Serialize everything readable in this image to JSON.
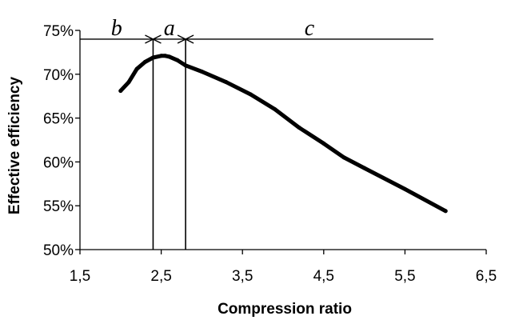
{
  "chart_data": {
    "type": "line",
    "xlabel": "Compression ratio",
    "ylabel": "Effective efficiency",
    "xlim": [
      1.5,
      6.5
    ],
    "ylim": [
      50,
      75
    ],
    "xticks": [
      1.5,
      2.5,
      3.5,
      4.5,
      5.5,
      6.5
    ],
    "xtick_labels": [
      "1,5",
      "2,5",
      "3,5",
      "4,5",
      "5,5",
      "6,5"
    ],
    "yticks": [
      50,
      55,
      60,
      65,
      70,
      75
    ],
    "ytick_labels": [
      "50%",
      "55%",
      "60%",
      "65%",
      "70%",
      "75%"
    ],
    "grid": false,
    "series": [
      {
        "x": [
          2.0,
          2.1,
          2.2,
          2.3,
          2.4,
          2.5,
          2.55,
          2.6,
          2.7,
          2.8,
          3.0,
          3.3,
          3.6,
          3.9,
          4.2,
          4.5,
          4.75,
          5.0,
          5.5,
          6.0
        ],
        "y": [
          68.1,
          69.1,
          70.6,
          71.4,
          71.9,
          72.1,
          72.1,
          72.0,
          71.6,
          71.0,
          70.3,
          69.1,
          67.7,
          66.0,
          63.9,
          62.1,
          60.5,
          59.3,
          56.9,
          54.4
        ]
      }
    ],
    "regions": [
      {
        "label": "b",
        "from": 1.5,
        "to": 2.4
      },
      {
        "label": "a",
        "from": 2.4,
        "to": 2.8
      },
      {
        "label": "c",
        "from": 2.8,
        "to": 5.85
      }
    ],
    "boundaries": [
      2.4,
      2.8
    ],
    "region_level": 74
  }
}
